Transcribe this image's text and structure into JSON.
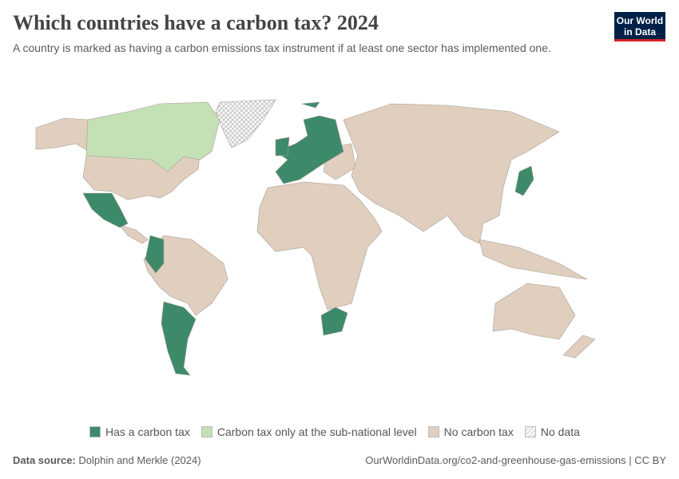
{
  "title": "Which countries have a carbon tax? 2024",
  "subtitle": "A country is marked as having a carbon emissions tax instrument if at least one sector has implemented one.",
  "logo": {
    "line1": "Our World",
    "line2": "in Data"
  },
  "colors": {
    "has": "#3d8a6a",
    "subnational": "#c4e1b5",
    "none": "#e0cfbe",
    "border": "#a69d95",
    "nodata": "hatched"
  },
  "legend": [
    {
      "label": "Has a carbon tax",
      "color": "#3d8a6a"
    },
    {
      "label": "Carbon tax only at the sub-national level",
      "color": "#c4e1b5"
    },
    {
      "label": "No carbon tax",
      "color": "#e0cfbe"
    },
    {
      "label": "No data",
      "color": "hatched"
    }
  ],
  "footer": {
    "source_label": "Data source:",
    "source": "Dolphin and Merkle (2024)",
    "url": "OurWorldinData.org/co2-and-greenhouse-gas-emissions | CC BY"
  }
}
